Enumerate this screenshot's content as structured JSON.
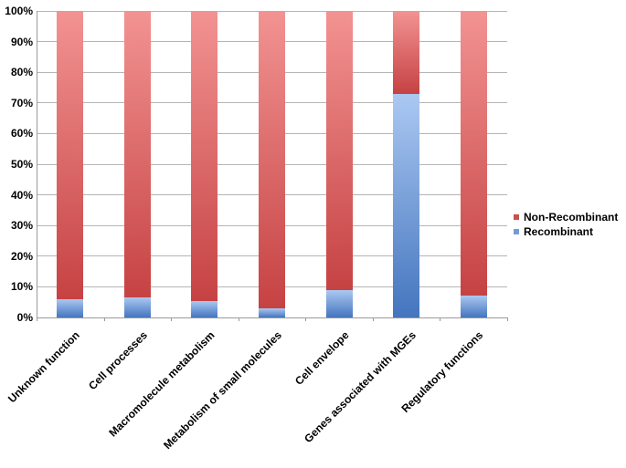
{
  "chart_data": {
    "type": "bar",
    "stacked": true,
    "units": "percent",
    "title": "",
    "xlabel": "",
    "ylabel": "",
    "ylim": [
      0,
      100
    ],
    "grid": true,
    "legend_position": "right",
    "categories": [
      "Unknown function",
      "Cell processes",
      "Macromolecule metabolism",
      "Metabolism of small molecules",
      "Cell envelope",
      "Genes associated with MGEs",
      "Regulatory functions"
    ],
    "series": [
      {
        "name": "Non-Recombinant",
        "values": [
          94,
          93.5,
          94.5,
          97,
          91,
          27,
          93
        ],
        "gradient_top": "#F29392",
        "gradient_bottom": "#C64243",
        "legend_color": "#C9504E"
      },
      {
        "name": "Recombinant",
        "values": [
          6,
          6.5,
          5.5,
          3,
          9,
          73,
          7
        ],
        "gradient_top": "#ABC8F2",
        "gradient_bottom": "#4475BE",
        "legend_color": "#719DD7"
      }
    ],
    "yticks": [
      "0%",
      "10%",
      "20%",
      "30%",
      "40%",
      "50%",
      "60%",
      "70%",
      "80%",
      "90%",
      "100%"
    ],
    "colors": {
      "grid": "#B5B5B5",
      "axis": "#9B9B9B",
      "text": "#000000",
      "background": "#FFFFFF"
    }
  }
}
